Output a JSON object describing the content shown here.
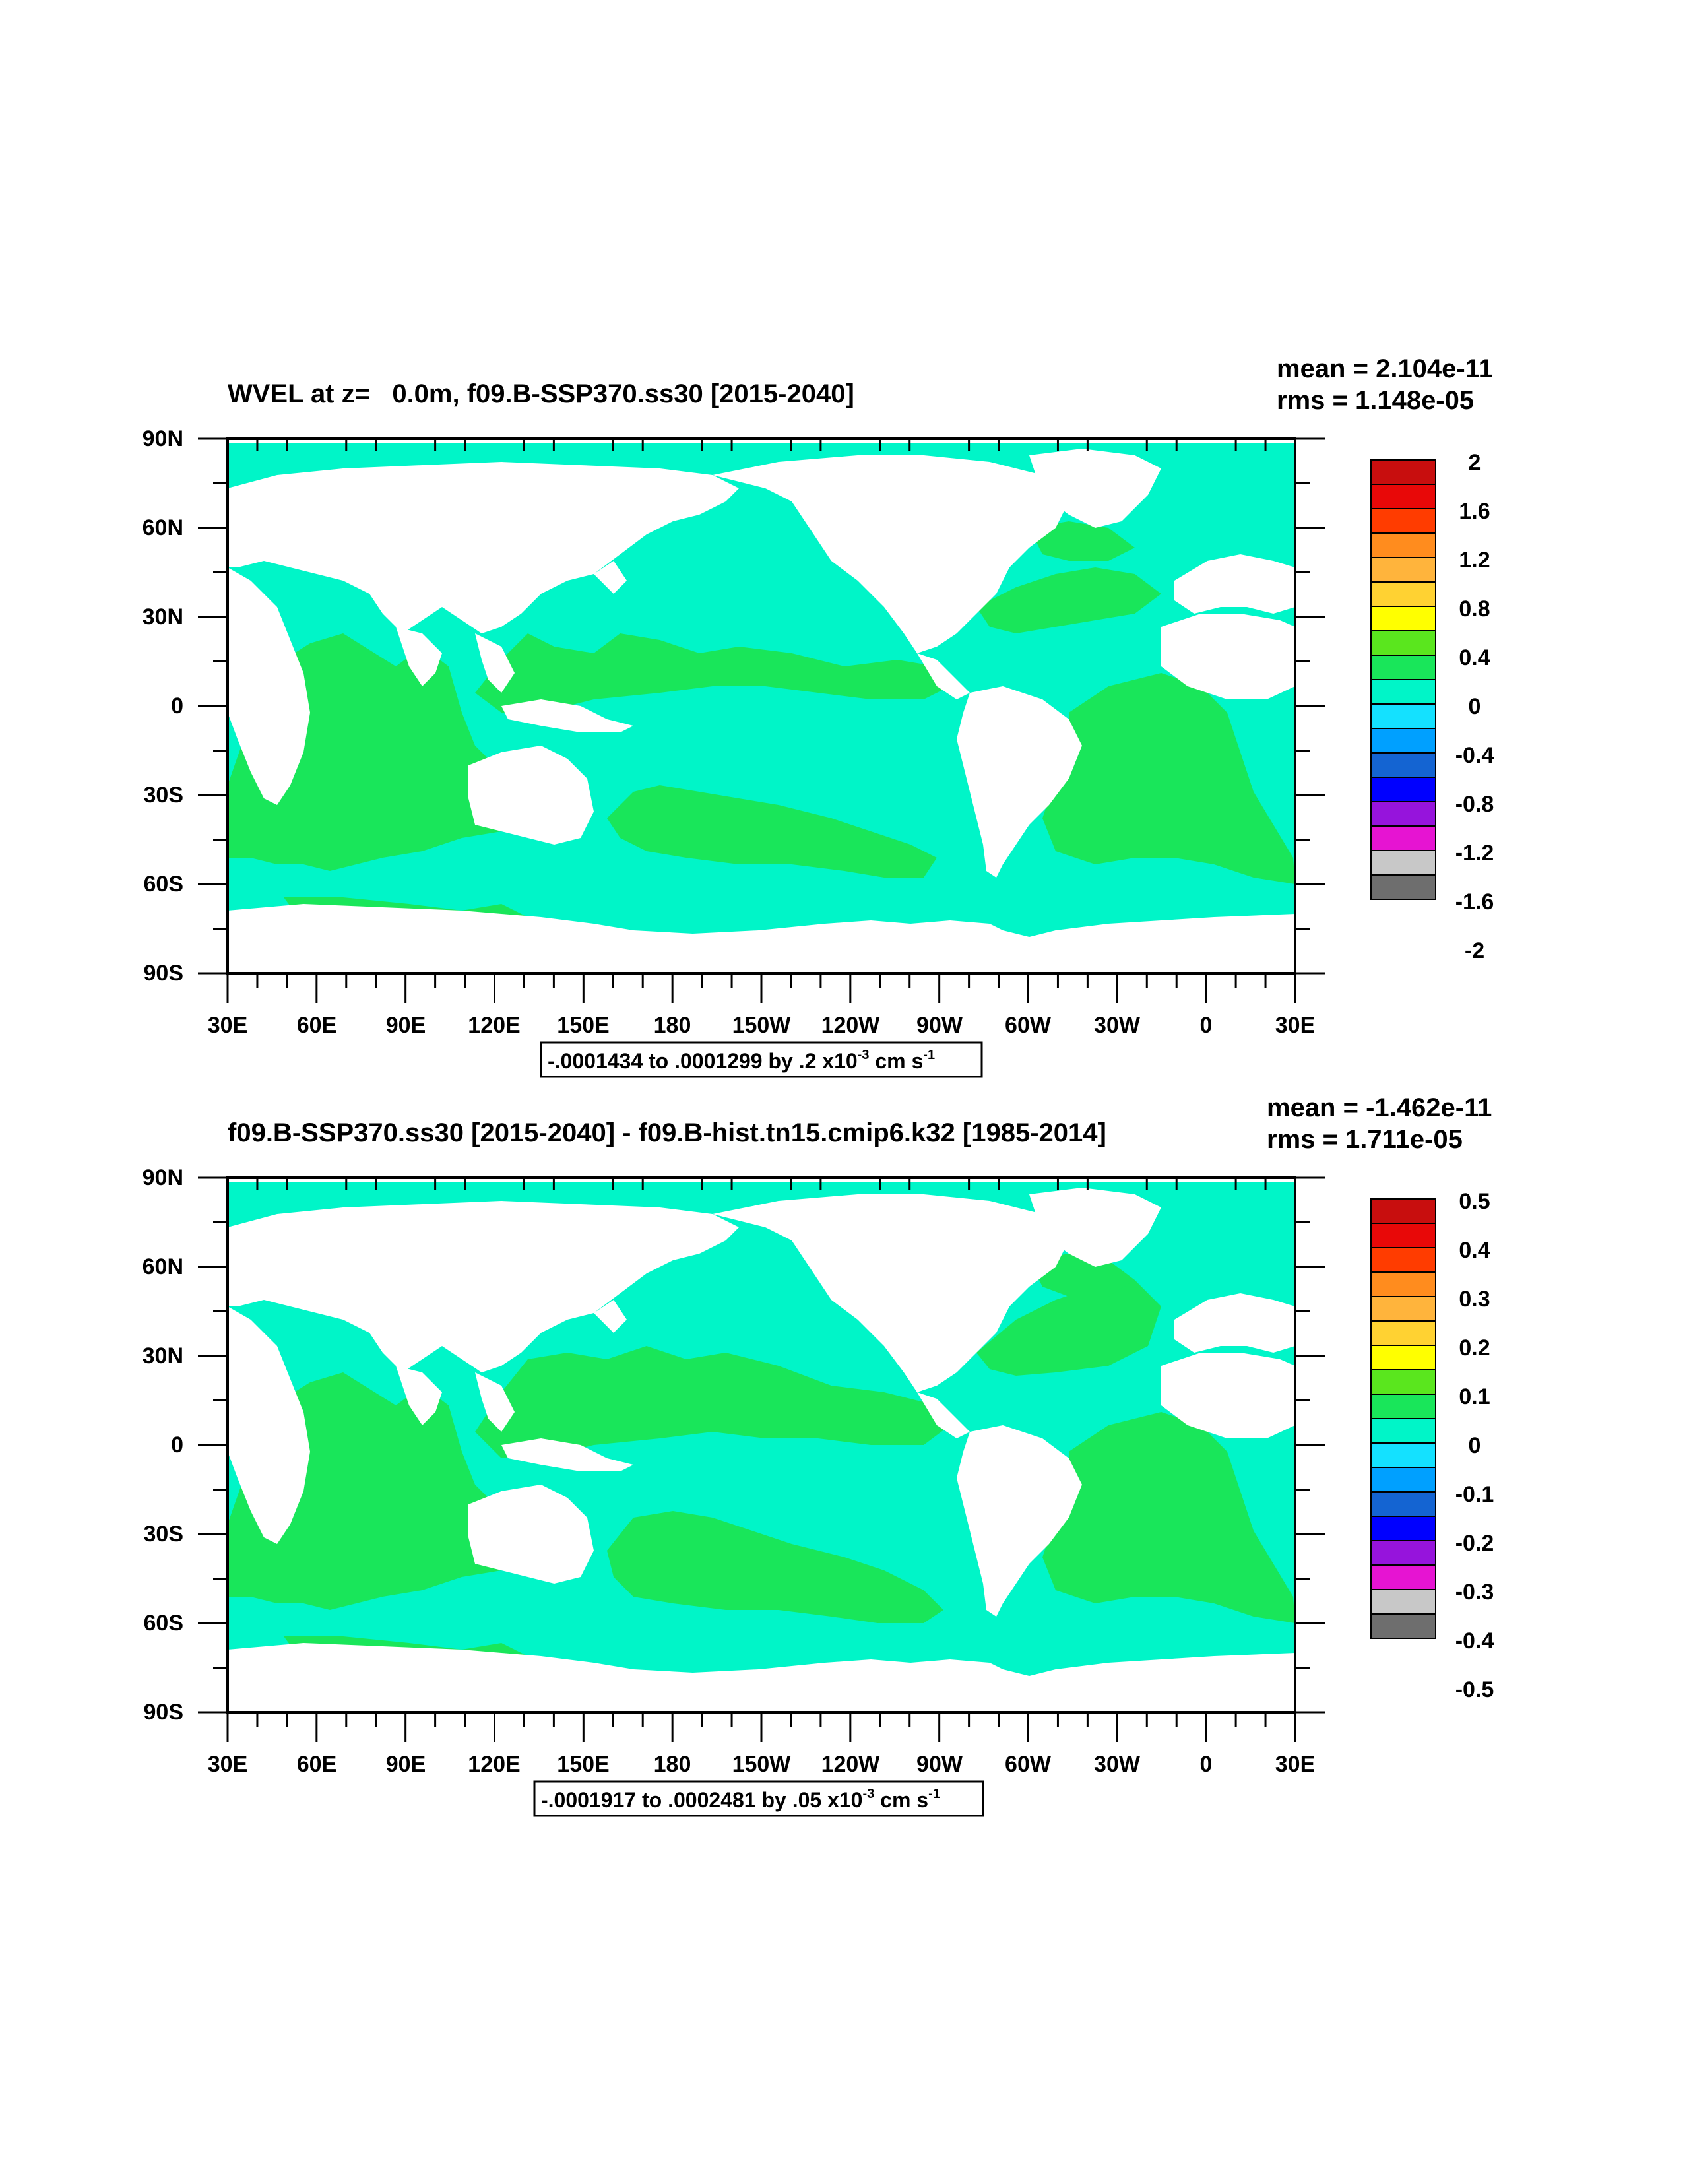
{
  "panels": [
    {
      "title": "WVEL at z=   0.0m, f09.B-SSP370.ss30 [2015-2040]",
      "stats": {
        "mean": "mean = 2.104e-11",
        "rms": "rms = 1.148e-05"
      },
      "contour_info": {
        "text": "-.0001434 to .0001299 by .2 x10",
        "exp": "-3",
        "unit": " cm s",
        "unit_exp": "-1"
      },
      "colorbar": {
        "labels": [
          "2",
          "1.6",
          "1.2",
          "0.8",
          "0.4",
          "0",
          "-0.4",
          "-0.8",
          "-1.2",
          "-1.6",
          "-2"
        ],
        "boundaries": [
          2,
          1.6,
          1.2,
          0.8,
          0.4,
          0,
          -0.4,
          -0.8,
          -1.2,
          -1.6,
          -2
        ]
      }
    },
    {
      "title": "f09.B-SSP370.ss30 [2015-2040] - f09.B-hist.tn15.cmip6.k32 [1985-2014]",
      "stats": {
        "mean": "mean = -1.462e-11",
        "rms": "rms = 1.711e-05"
      },
      "contour_info": {
        "text": "-.0001917 to .0002481 by .05 x10",
        "exp": "-3",
        "unit": " cm s",
        "unit_exp": "-1"
      },
      "colorbar": {
        "labels": [
          "0.5",
          "0.4",
          "0.3",
          "0.2",
          "0.1",
          "0",
          "-0.1",
          "-0.2",
          "-0.3",
          "-0.4",
          "-0.5"
        ],
        "boundaries": [
          0.5,
          0.4,
          0.3,
          0.2,
          0.1,
          0,
          -0.1,
          -0.2,
          -0.3,
          -0.4,
          -0.5
        ]
      }
    }
  ],
  "axes": {
    "lat_labels": [
      "90N",
      "60N",
      "30N",
      "0",
      "30S",
      "60S",
      "90S"
    ],
    "lon_labels": [
      "30E",
      "60E",
      "90E",
      "120E",
      "150E",
      "180",
      "150W",
      "120W",
      "90W",
      "60W",
      "30W",
      "0",
      "30E"
    ],
    "lat_range": [
      -90,
      90
    ],
    "lon_range": [
      30,
      390
    ]
  },
  "colors": {
    "palette_top_to_bottom": [
      "#c80e0e",
      "#e80808",
      "#ff3c00",
      "#ff8c1e",
      "#ffb43c",
      "#ffd232",
      "#ffff00",
      "#5ae61e",
      "#19e65a",
      "#00f5c8",
      "#14e1ff",
      "#00a0ff",
      "#1464d2",
      "#0000ff",
      "#9614dc",
      "#e614d2",
      "#c8c8c8",
      "#6e6e6e"
    ],
    "ocean": "#00f5c8",
    "positive_region": "#19e65a",
    "land": "#ffffff"
  }
}
